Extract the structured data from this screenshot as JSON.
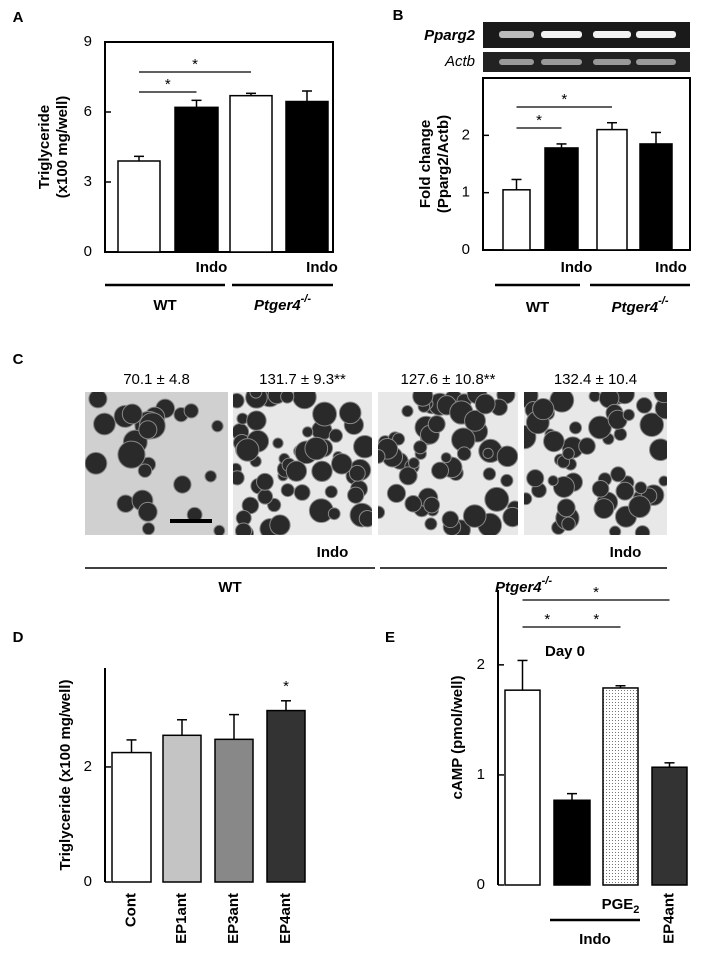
{
  "chart_data": [
    {
      "type": "bar",
      "panel": "A",
      "ylabel": "Triglyceride",
      "ylabel_unit": "(x100 mg/well)",
      "categories": [
        null,
        "Indo",
        null,
        "Indo"
      ],
      "values": [
        3.9,
        6.2,
        6.7,
        6.45
      ],
      "errors": [
        0.2,
        0.3,
        0.1,
        0.45
      ],
      "colors": [
        "#ffffff",
        "#000000",
        "#ffffff",
        "#000000"
      ],
      "ylim": [
        0,
        9
      ],
      "yticks": [
        0,
        3,
        6,
        9
      ],
      "frame": "box",
      "groups": [
        {
          "label": "WT"
        },
        {
          "label": "Ptger4",
          "sup": "-/-"
        }
      ],
      "significance": [
        {
          "label": "*",
          "between": [
            0,
            1
          ]
        },
        {
          "label": "*",
          "between": [
            0,
            2
          ]
        }
      ]
    },
    {
      "type": "bar",
      "panel": "B",
      "ylabel": "Fold change",
      "ylabel_unit": "(Pparg2/Actb)",
      "gel_labels": [
        "Pparg2",
        "Actb"
      ],
      "categories": [
        null,
        "Indo",
        null,
        "Indo"
      ],
      "values": [
        1.05,
        1.78,
        2.1,
        1.85
      ],
      "errors": [
        0.18,
        0.07,
        0.12,
        0.2
      ],
      "colors": [
        "#ffffff",
        "#000000",
        "#ffffff",
        "#000000"
      ],
      "ylim": [
        0,
        3
      ],
      "yticks": [
        0,
        1,
        2
      ],
      "frame": "box",
      "groups": [
        {
          "label": "WT"
        },
        {
          "label": "Ptger4",
          "sup": "-/-"
        }
      ],
      "significance": [
        {
          "label": "*",
          "between": [
            0,
            1
          ]
        },
        {
          "label": "*",
          "between": [
            0,
            2
          ]
        }
      ]
    },
    {
      "type": "bar",
      "panel": "D",
      "ylabel": "Triglyceride (x100 mg/well)",
      "categories": [
        "Cont",
        "EP1ant",
        "EP3ant",
        "EP4ant"
      ],
      "values": [
        2.25,
        2.55,
        2.48,
        2.98
      ],
      "errors": [
        0.22,
        0.27,
        0.43,
        0.17
      ],
      "colors": [
        "#ffffff",
        "#c4c4c4",
        "#888888",
        "#333333"
      ],
      "ylim": [
        0,
        3.72
      ],
      "yticks": [
        0,
        2
      ],
      "frame": "left",
      "significance": [
        {
          "label": "*",
          "bar": 3
        }
      ]
    },
    {
      "type": "bar",
      "panel": "E",
      "title": "Day 0",
      "ylabel": "cAMP (pmol/well)",
      "categories": [
        null,
        null,
        null,
        "EP4ant"
      ],
      "bar_labels": [
        {
          "text": "PGE",
          "sub": "2"
        }
      ],
      "values": [
        1.77,
        0.77,
        1.79,
        1.07
      ],
      "errors": [
        0.27,
        0.06,
        0.02,
        0.04
      ],
      "colors": [
        "#ffffff",
        "#000000",
        "#dddddd",
        "#333333"
      ],
      "patterns": [
        null,
        null,
        "dots",
        null
      ],
      "ylim": [
        0,
        2.68
      ],
      "yticks": [
        0,
        1,
        2
      ],
      "frame": "left",
      "groups": [
        {
          "label": "Indo"
        }
      ],
      "significance": [
        {
          "label": "*",
          "between": [
            0,
            1
          ]
        },
        {
          "label": "*",
          "between": [
            1,
            2
          ]
        },
        {
          "label": "*",
          "between": [
            0,
            3
          ]
        }
      ]
    }
  ],
  "panel_c": {
    "panel": "C",
    "measurements": [
      "70.1 ± 4.8",
      "131.7 ± 9.3**",
      "127.6 ± 10.8**",
      "132.4 ± 10.4"
    ],
    "categories": [
      null,
      "Indo",
      null,
      "Indo"
    ],
    "groups": [
      {
        "label": "WT"
      },
      {
        "label": "Ptger4",
        "sup": "-/-"
      }
    ]
  }
}
